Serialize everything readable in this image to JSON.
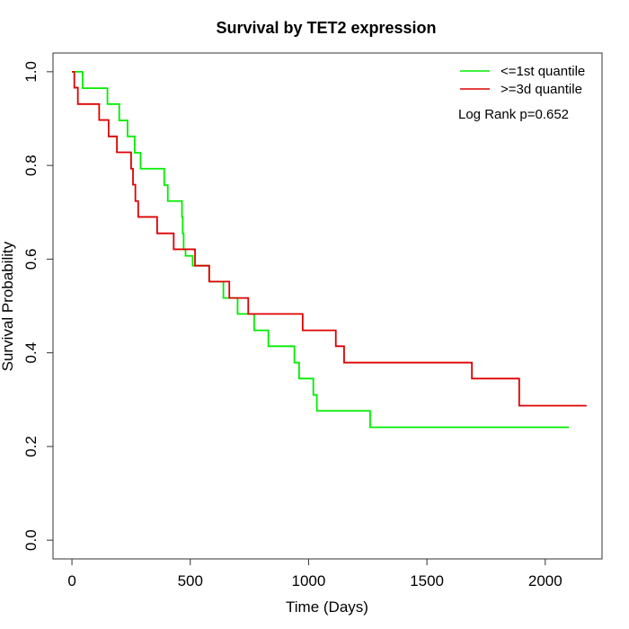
{
  "chart_data": {
    "type": "line",
    "title": "Survival by TET2 expression",
    "xlabel": "Time (Days)",
    "ylabel": "Survival Probability",
    "xlim": [
      -80,
      2240
    ],
    "ylim": [
      -0.04,
      1.04
    ],
    "x_ticks": [
      0,
      500,
      1000,
      1500,
      2000
    ],
    "y_ticks": [
      0.0,
      0.2,
      0.4,
      0.6,
      0.8,
      1.0
    ],
    "y_tick_labels": [
      "0.0",
      "0.2",
      "0.4",
      "0.6",
      "0.8",
      "1.0"
    ],
    "grid": false,
    "legend_position": "top-right",
    "annotation": "Log Rank p=0.652",
    "series": [
      {
        "name": "<=1st quantile",
        "color": "#00ee00",
        "x": [
          0,
          45,
          150,
          200,
          235,
          265,
          290,
          390,
          405,
          465,
          468,
          472,
          480,
          510,
          580,
          640,
          700,
          770,
          830,
          940,
          960,
          1020,
          1035,
          1260,
          2100
        ],
        "y": [
          1.0,
          0.965,
          0.931,
          0.896,
          0.862,
          0.827,
          0.793,
          0.758,
          0.724,
          0.69,
          0.655,
          0.621,
          0.607,
          0.586,
          0.552,
          0.517,
          0.483,
          0.448,
          0.414,
          0.379,
          0.345,
          0.31,
          0.276,
          0.241,
          0.241
        ]
      },
      {
        "name": ">=3d quantile",
        "color": "#dd0000",
        "x": [
          0,
          10,
          25,
          115,
          155,
          190,
          250,
          258,
          268,
          280,
          300,
          360,
          430,
          520,
          580,
          665,
          745,
          975,
          1115,
          1150,
          1690,
          1890,
          2175
        ],
        "y": [
          1.0,
          0.966,
          0.931,
          0.897,
          0.862,
          0.828,
          0.793,
          0.759,
          0.724,
          0.69,
          0.69,
          0.655,
          0.621,
          0.586,
          0.552,
          0.517,
          0.483,
          0.448,
          0.414,
          0.379,
          0.345,
          0.287,
          0.287
        ]
      }
    ]
  }
}
